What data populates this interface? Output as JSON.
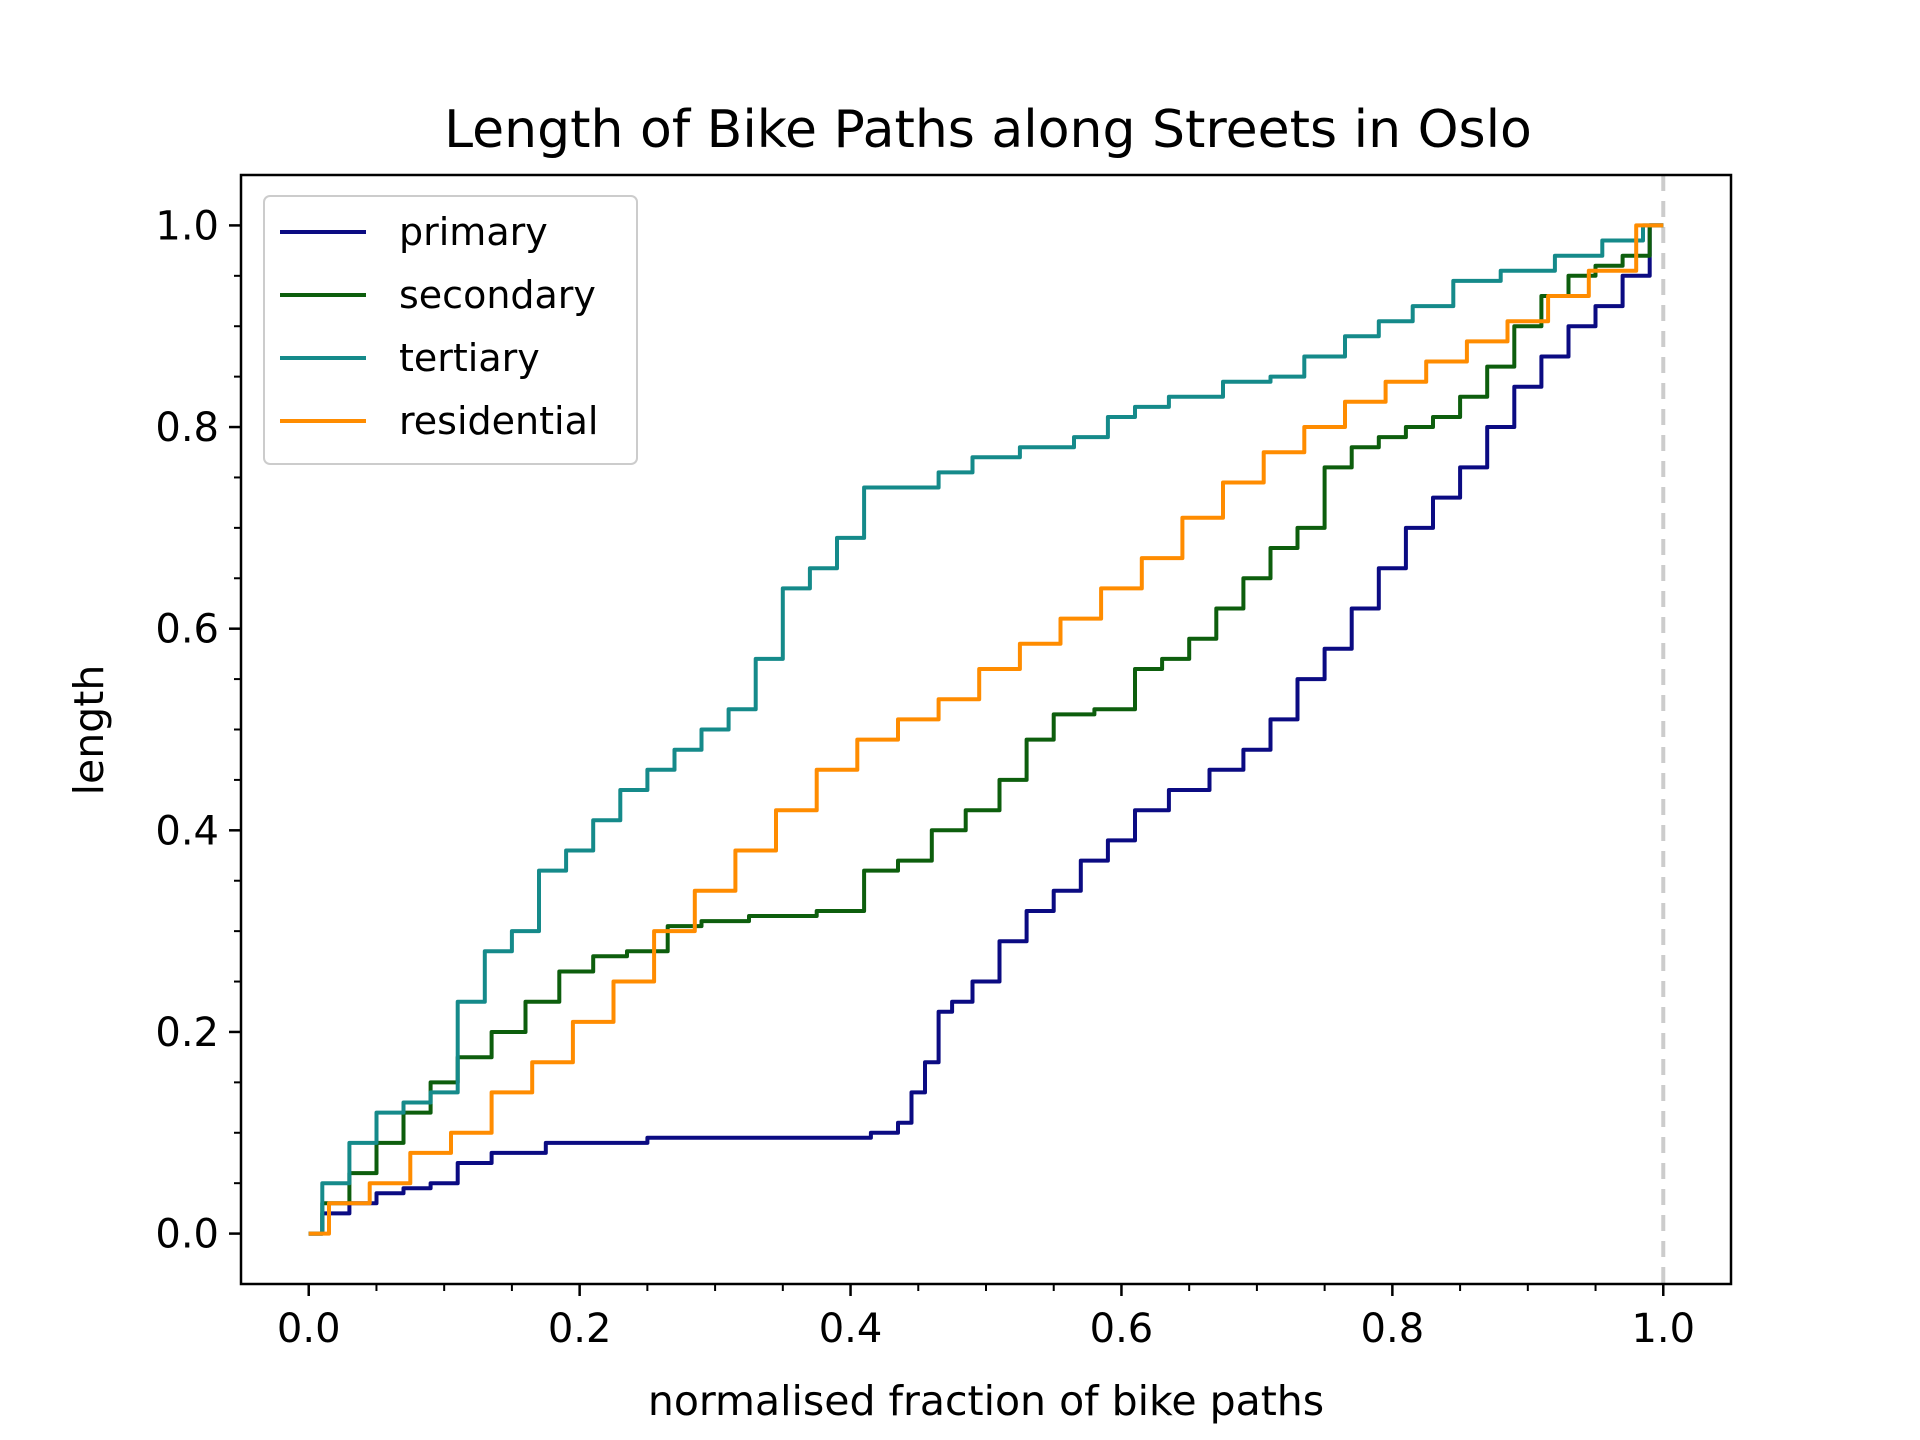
{
  "chart_data": {
    "type": "line",
    "title": "Length of Bike Paths along Streets in Oslo",
    "xlabel": "normalised fraction of bike paths",
    "ylabel": "length",
    "xlim": [
      -0.05,
      1.05
    ],
    "ylim": [
      -0.05,
      1.05
    ],
    "xticks": [
      "0.0",
      "0.2",
      "0.4",
      "0.6",
      "0.8",
      "1.0"
    ],
    "yticks": [
      "0.0",
      "0.2",
      "0.4",
      "0.6",
      "0.8",
      "1.0"
    ],
    "grid": false,
    "legend_position": "top-left",
    "reference_line": {
      "x": 1.0,
      "style": "dashed",
      "color": "#cccccc"
    },
    "series": [
      {
        "name": "primary",
        "color": "#0b0b82",
        "x": [
          0.0,
          0.02,
          0.04,
          0.06,
          0.08,
          0.1,
          0.12,
          0.15,
          0.2,
          0.3,
          0.4,
          0.43,
          0.44,
          0.45,
          0.46,
          0.47,
          0.48,
          0.5,
          0.52,
          0.54,
          0.56,
          0.58,
          0.6,
          0.62,
          0.65,
          0.68,
          0.7,
          0.72,
          0.74,
          0.76,
          0.78,
          0.8,
          0.82,
          0.84,
          0.86,
          0.88,
          0.9,
          0.92,
          0.94,
          0.96,
          0.98,
          1.0
        ],
        "y": [
          0.0,
          0.02,
          0.03,
          0.04,
          0.045,
          0.05,
          0.07,
          0.08,
          0.09,
          0.095,
          0.095,
          0.1,
          0.11,
          0.14,
          0.17,
          0.22,
          0.23,
          0.25,
          0.29,
          0.32,
          0.34,
          0.37,
          0.39,
          0.42,
          0.44,
          0.46,
          0.48,
          0.51,
          0.55,
          0.58,
          0.62,
          0.66,
          0.7,
          0.73,
          0.76,
          0.8,
          0.84,
          0.87,
          0.9,
          0.92,
          0.95,
          1.0
        ]
      },
      {
        "name": "secondary",
        "color": "#0d5e0d",
        "x": [
          0.0,
          0.02,
          0.04,
          0.06,
          0.08,
          0.1,
          0.12,
          0.15,
          0.17,
          0.2,
          0.22,
          0.25,
          0.28,
          0.3,
          0.35,
          0.4,
          0.42,
          0.45,
          0.47,
          0.5,
          0.52,
          0.54,
          0.56,
          0.6,
          0.62,
          0.64,
          0.66,
          0.68,
          0.7,
          0.72,
          0.74,
          0.76,
          0.78,
          0.8,
          0.82,
          0.84,
          0.86,
          0.88,
          0.9,
          0.92,
          0.94,
          0.96,
          0.98,
          1.0
        ],
        "y": [
          0.0,
          0.03,
          0.06,
          0.09,
          0.12,
          0.15,
          0.175,
          0.2,
          0.23,
          0.26,
          0.275,
          0.28,
          0.305,
          0.31,
          0.315,
          0.32,
          0.36,
          0.37,
          0.4,
          0.42,
          0.45,
          0.49,
          0.515,
          0.52,
          0.56,
          0.57,
          0.59,
          0.62,
          0.65,
          0.68,
          0.7,
          0.76,
          0.78,
          0.79,
          0.8,
          0.81,
          0.83,
          0.86,
          0.9,
          0.93,
          0.95,
          0.96,
          0.97,
          1.0
        ]
      },
      {
        "name": "tertiary",
        "color": "#158a8a",
        "x": [
          0.0,
          0.02,
          0.04,
          0.06,
          0.08,
          0.1,
          0.12,
          0.14,
          0.16,
          0.18,
          0.2,
          0.22,
          0.24,
          0.26,
          0.28,
          0.3,
          0.32,
          0.34,
          0.36,
          0.38,
          0.4,
          0.42,
          0.45,
          0.48,
          0.5,
          0.55,
          0.58,
          0.6,
          0.62,
          0.65,
          0.7,
          0.72,
          0.75,
          0.78,
          0.8,
          0.83,
          0.86,
          0.9,
          0.94,
          0.97,
          1.0
        ],
        "y": [
          0.0,
          0.05,
          0.09,
          0.12,
          0.13,
          0.14,
          0.23,
          0.28,
          0.3,
          0.36,
          0.38,
          0.41,
          0.44,
          0.46,
          0.48,
          0.5,
          0.52,
          0.57,
          0.64,
          0.66,
          0.69,
          0.74,
          0.74,
          0.755,
          0.77,
          0.78,
          0.79,
          0.81,
          0.82,
          0.83,
          0.845,
          0.85,
          0.87,
          0.89,
          0.905,
          0.92,
          0.945,
          0.955,
          0.97,
          0.985,
          1.0
        ]
      },
      {
        "name": "residential",
        "color": "#ff8c00",
        "x": [
          0.0,
          0.03,
          0.06,
          0.09,
          0.12,
          0.15,
          0.18,
          0.21,
          0.24,
          0.27,
          0.3,
          0.33,
          0.36,
          0.39,
          0.42,
          0.45,
          0.48,
          0.51,
          0.54,
          0.57,
          0.6,
          0.63,
          0.66,
          0.69,
          0.72,
          0.75,
          0.78,
          0.81,
          0.84,
          0.87,
          0.9,
          0.93,
          0.96,
          1.0
        ],
        "y": [
          0.0,
          0.03,
          0.05,
          0.08,
          0.1,
          0.14,
          0.17,
          0.21,
          0.25,
          0.3,
          0.34,
          0.38,
          0.42,
          0.46,
          0.49,
          0.51,
          0.53,
          0.56,
          0.585,
          0.61,
          0.64,
          0.67,
          0.71,
          0.745,
          0.775,
          0.8,
          0.825,
          0.845,
          0.865,
          0.885,
          0.905,
          0.93,
          0.955,
          1.0
        ]
      }
    ]
  }
}
